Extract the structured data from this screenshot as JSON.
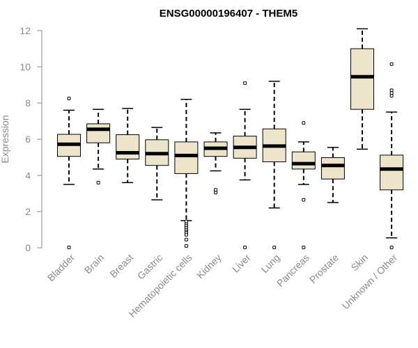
{
  "chart_data": {
    "type": "boxplot",
    "title": "ENSG00000196407 - THEM5",
    "xlabel": "",
    "ylabel": "Expression",
    "ylim": [
      0,
      12
    ],
    "yticks": [
      0,
      2,
      4,
      6,
      8,
      10,
      12
    ],
    "grid": false,
    "box_color": "#ede4cb",
    "median_color": "#000000",
    "categories": [
      "Bladder",
      "Brain",
      "Breast",
      "Gastric",
      "Hematopoietic cells",
      "Kidney",
      "Liver",
      "Lung",
      "Pancreas",
      "Prostate",
      "Skin",
      "Unknown / Other"
    ],
    "boxes": [
      {
        "name": "Bladder",
        "whisker_low": 3.5,
        "q1": 5.05,
        "median": 5.72,
        "q3": 6.27,
        "whisker_high": 7.6,
        "outliers": [
          8.25,
          0.02
        ]
      },
      {
        "name": "Brain",
        "whisker_low": 4.35,
        "q1": 5.8,
        "median": 6.55,
        "q3": 6.85,
        "whisker_high": 7.65,
        "outliers": [
          3.6
        ]
      },
      {
        "name": "Breast",
        "whisker_low": 3.6,
        "q1": 4.9,
        "median": 5.25,
        "q3": 6.25,
        "whisker_high": 7.7,
        "outliers": []
      },
      {
        "name": "Gastric",
        "whisker_low": 2.65,
        "q1": 4.55,
        "median": 5.2,
        "q3": 5.97,
        "whisker_high": 6.65,
        "outliers": []
      },
      {
        "name": "Hematopoietic cells",
        "whisker_low": 1.5,
        "q1": 4.1,
        "median": 5.1,
        "q3": 5.85,
        "whisker_high": 8.2,
        "outliers": [
          1.45,
          1.3,
          1.2,
          1.1,
          1.0,
          0.9,
          0.82,
          0.72,
          0.45,
          0.1
        ]
      },
      {
        "name": "Kidney",
        "whisker_low": 4.25,
        "q1": 5.05,
        "median": 5.5,
        "q3": 5.85,
        "whisker_high": 6.35,
        "outliers": [
          3.2,
          3.05
        ]
      },
      {
        "name": "Liver",
        "whisker_low": 3.75,
        "q1": 4.95,
        "median": 5.55,
        "q3": 6.17,
        "whisker_high": 7.65,
        "outliers": [
          9.1,
          0.02
        ]
      },
      {
        "name": "Lung",
        "whisker_low": 2.2,
        "q1": 4.75,
        "median": 5.62,
        "q3": 6.57,
        "whisker_high": 9.2,
        "outliers": [
          0.02
        ]
      },
      {
        "name": "Pancreas",
        "whisker_low": 3.5,
        "q1": 4.35,
        "median": 4.65,
        "q3": 5.3,
        "whisker_high": 5.85,
        "outliers": [
          6.9,
          2.65,
          0.02
        ]
      },
      {
        "name": "Prostate",
        "whisker_low": 2.5,
        "q1": 3.8,
        "median": 4.55,
        "q3": 4.98,
        "whisker_high": 5.55,
        "outliers": []
      },
      {
        "name": "Skin",
        "whisker_low": 5.45,
        "q1": 7.65,
        "median": 9.45,
        "q3": 11.0,
        "whisker_high": 12.1,
        "outliers": []
      },
      {
        "name": "Unknown / Other",
        "whisker_low": 0.55,
        "q1": 3.2,
        "median": 4.35,
        "q3": 5.12,
        "whisker_high": 7.5,
        "outliers": [
          10.15,
          8.7,
          8.55,
          8.4,
          0.02
        ]
      }
    ]
  }
}
